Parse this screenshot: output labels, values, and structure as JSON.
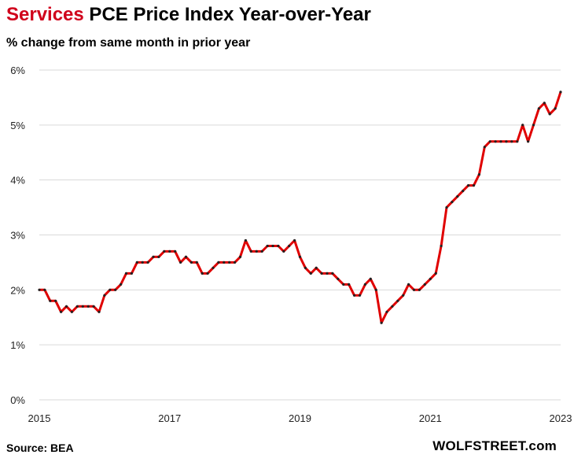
{
  "header": {
    "title_highlight": "Services",
    "title_rest": " PCE Price Index Year-over-Year",
    "subtitle": "% change from same month in prior year"
  },
  "footer": {
    "source": "Source: BEA",
    "brand": "WOLFSTREET.com"
  },
  "colors": {
    "line": "#e00000",
    "marker": "#222222",
    "grid": "#d9d9d9",
    "title_highlight": "#d0021b"
  },
  "chart_data": {
    "type": "line",
    "title": "Services PCE Price Index Year-over-Year",
    "subtitle": "% change from same month in prior year",
    "x_start": "2015-01",
    "frequency": "monthly",
    "x_ticks": [
      "2015",
      "2017",
      "2019",
      "2021",
      "2023"
    ],
    "y_ticks": [
      "0%",
      "1%",
      "2%",
      "3%",
      "4%",
      "5%",
      "6%"
    ],
    "ylim": [
      0,
      6
    ],
    "grid": "horizontal",
    "legend": "none",
    "series": [
      {
        "values": [
          2.0,
          2.0,
          1.8,
          1.8,
          1.6,
          1.7,
          1.6,
          1.7,
          1.7,
          1.7,
          1.7,
          1.6,
          1.9,
          2.0,
          2.0,
          2.1,
          2.3,
          2.3,
          2.5,
          2.5,
          2.5,
          2.6,
          2.6,
          2.7,
          2.7,
          2.7,
          2.5,
          2.6,
          2.5,
          2.5,
          2.3,
          2.3,
          2.4,
          2.5,
          2.5,
          2.5,
          2.5,
          2.6,
          2.9,
          2.7,
          2.7,
          2.7,
          2.8,
          2.8,
          2.8,
          2.7,
          2.8,
          2.9,
          2.6,
          2.4,
          2.3,
          2.4,
          2.3,
          2.3,
          2.3,
          2.2,
          2.1,
          2.1,
          1.9,
          1.9,
          2.1,
          2.2,
          2.0,
          1.4,
          1.6,
          1.7,
          1.8,
          1.9,
          2.1,
          2.0,
          2.0,
          2.1,
          2.2,
          2.3,
          2.8,
          3.5,
          3.6,
          3.7,
          3.8,
          3.9,
          3.9,
          4.1,
          4.6,
          4.7,
          4.7,
          4.7,
          4.7,
          4.7,
          4.7,
          5.0,
          4.7,
          5.0,
          5.3,
          5.4,
          5.2,
          5.3,
          5.6
        ]
      }
    ]
  }
}
